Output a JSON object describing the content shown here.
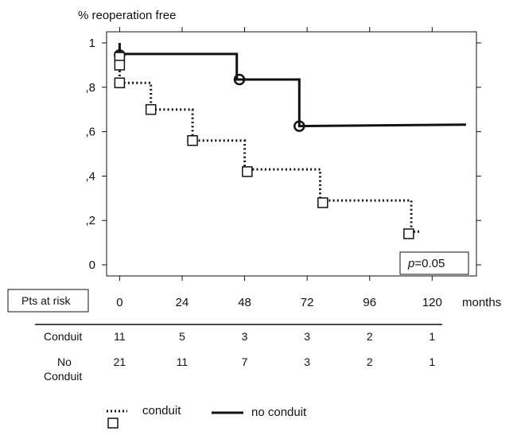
{
  "chart_data": {
    "type": "line",
    "title": "",
    "ylabel": "% reoperation free",
    "xlabel": "months",
    "xlim": [
      -5,
      137
    ],
    "ylim": [
      -0.05,
      1.05
    ],
    "x_ticks": [
      0,
      24,
      48,
      72,
      96,
      120
    ],
    "y_ticks": [
      {
        "value": 0,
        "label": "0"
      },
      {
        "value": 0.2,
        "label": ",2"
      },
      {
        "value": 0.4,
        "label": ",4"
      },
      {
        "value": 0.6,
        "label": ",6"
      },
      {
        "value": 0.8,
        "label": ",8"
      },
      {
        "value": 1.0,
        "label": "1"
      }
    ],
    "annotation": {
      "p_symbol": "p",
      "p_value": "=0.05"
    },
    "series": [
      {
        "name": "no conduit",
        "style": "solid",
        "marker": "circle",
        "steps": [
          [
            0,
            1.0
          ],
          [
            0,
            0.95
          ],
          [
            45,
            0.95
          ],
          [
            45,
            0.835
          ],
          [
            69,
            0.835
          ],
          [
            69,
            0.625
          ],
          [
            133,
            0.632
          ]
        ],
        "markers": [
          [
            0,
            0.945
          ],
          [
            46,
            0.835
          ],
          [
            69,
            0.625
          ]
        ]
      },
      {
        "name": "conduit",
        "style": "dotted",
        "marker": "square",
        "steps": [
          [
            0,
            0.95
          ],
          [
            0,
            0.82
          ],
          [
            12,
            0.82
          ],
          [
            12,
            0.7
          ],
          [
            28,
            0.7
          ],
          [
            28,
            0.56
          ],
          [
            48,
            0.56
          ],
          [
            48,
            0.43
          ],
          [
            77,
            0.43
          ],
          [
            77,
            0.29
          ],
          [
            112,
            0.29
          ],
          [
            112,
            0.15
          ],
          [
            115,
            0.15
          ]
        ],
        "markers": [
          [
            0,
            0.935
          ],
          [
            0,
            0.9
          ],
          [
            0,
            0.82
          ],
          [
            12,
            0.7
          ],
          [
            28,
            0.56
          ],
          [
            49,
            0.42
          ],
          [
            78,
            0.28
          ],
          [
            111,
            0.14
          ]
        ]
      }
    ],
    "risk_table": {
      "header": "Pts at risk",
      "x": [
        0,
        24,
        48,
        72,
        96,
        120
      ],
      "rows": [
        {
          "label": "Conduit",
          "values": [
            "11",
            "5",
            "3",
            "3",
            "2",
            "1"
          ]
        },
        {
          "label": "No",
          "label2": "Conduit",
          "values": [
            "21",
            "11",
            "7",
            "3",
            "2",
            "1"
          ]
        }
      ]
    },
    "legend": {
      "position": "bottom-left",
      "items": [
        "conduit",
        "no conduit"
      ]
    }
  }
}
